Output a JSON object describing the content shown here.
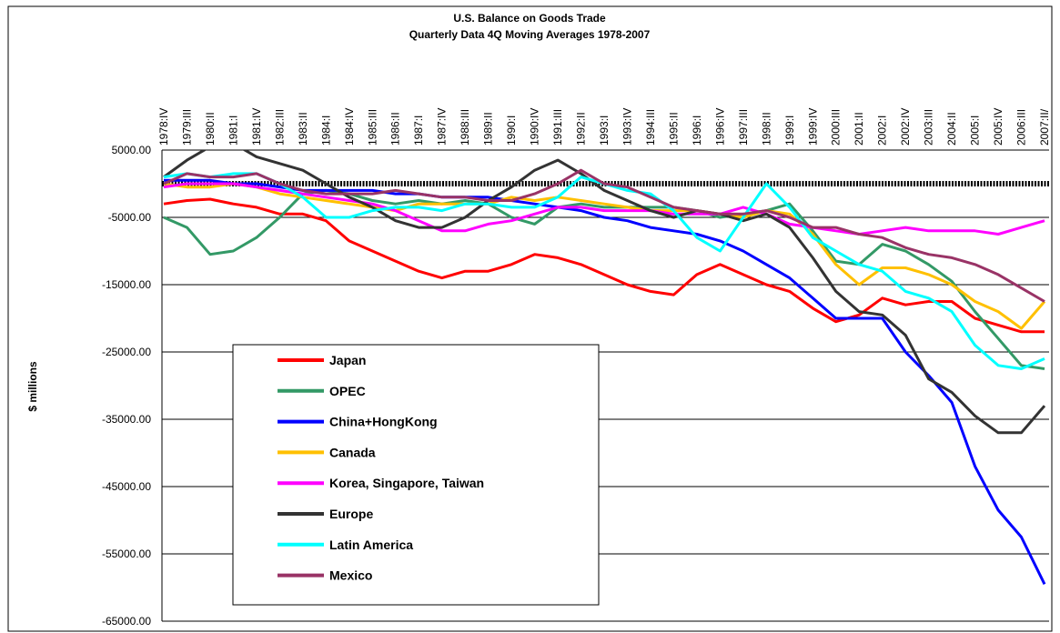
{
  "chart_data": {
    "type": "line",
    "title": "U.S. Balance on Goods Trade",
    "subtitle": "Quarterly Data 4Q Moving Averages 1978-2007",
    "y_label": "$ millions",
    "categories": [
      "1978:IV",
      "1979:III",
      "1980:II",
      "1981:I",
      "1981:IV",
      "1982:III",
      "1983:II",
      "1984:I",
      "1984:IV",
      "1985:III",
      "1986:II",
      "1987:I",
      "1987:IV",
      "1988:III",
      "1989:II",
      "1990:I",
      "1990:IV",
      "1991:III",
      "1992:II",
      "1993:I",
      "1993:IV",
      "1994:III",
      "1995:II",
      "1996:I",
      "1996:IV",
      "1997:III",
      "1998:II",
      "1999:I",
      "1999:IV",
      "2000:III",
      "2001:II",
      "2002:I",
      "2002:IV",
      "2003:III",
      "2004:II",
      "2005:I",
      "2005:IV",
      "2006:III",
      "2007:II/"
    ],
    "ylim": [
      -65000,
      5000
    ],
    "yticks": [
      {
        "value": 5000,
        "label": "5000.00"
      },
      {
        "value": -5000,
        "label": "-5000.00"
      },
      {
        "value": -15000,
        "label": "-15000.00"
      },
      {
        "value": -25000,
        "label": "-25000.00"
      },
      {
        "value": -35000,
        "label": "-35000.00"
      },
      {
        "value": -45000,
        "label": "-45000.00"
      },
      {
        "value": -55000,
        "label": "-55000.00"
      },
      {
        "value": -65000,
        "label": "-65000.00"
      }
    ],
    "grid": true,
    "series": [
      {
        "name": "Japan",
        "color": "#ff0000",
        "values": [
          -3000,
          -2500,
          -2300,
          -3000,
          -3500,
          -4500,
          -4500,
          -5500,
          -8500,
          -10000,
          -11500,
          -13000,
          -14000,
          -13000,
          -13000,
          -12000,
          -10500,
          -11000,
          -12000,
          -13500,
          -15000,
          -16000,
          -16500,
          -13500,
          -12000,
          -13500,
          -15000,
          -16000,
          -18500,
          -20500,
          -19500,
          -17000,
          -18000,
          -17500,
          -17500,
          -20000,
          -21000,
          -22000,
          -22000
        ]
      },
      {
        "name": "OPEC",
        "color": "#339966",
        "values": [
          -5000,
          -6500,
          -10500,
          -10000,
          -8000,
          -5000,
          -1500,
          -1000,
          -1500,
          -2500,
          -3000,
          -2500,
          -3000,
          -2500,
          -3000,
          -5000,
          -6000,
          -3500,
          -3000,
          -3500,
          -3500,
          -3500,
          -3500,
          -4000,
          -5000,
          -4500,
          -4000,
          -3000,
          -7000,
          -11500,
          -12000,
          -9000,
          -10000,
          -12000,
          -14500,
          -19000,
          -23000,
          -27000,
          -27500
        ]
      },
      {
        "name": "China+HongKong",
        "color": "#0000ff",
        "values": [
          500,
          500,
          500,
          0,
          0,
          -500,
          -1000,
          -1000,
          -1000,
          -1000,
          -1500,
          -1500,
          -2000,
          -2000,
          -2000,
          -2500,
          -3000,
          -3500,
          -4000,
          -5000,
          -5500,
          -6500,
          -7000,
          -7500,
          -8500,
          -10000,
          -12000,
          -14000,
          -17000,
          -20000,
          -20000,
          -20000,
          -25000,
          -28500,
          -32500,
          -42000,
          -48500,
          -52500,
          -59500
        ]
      },
      {
        "name": "Canada",
        "color": "#ffc000",
        "values": [
          0,
          -500,
          -500,
          0,
          -500,
          -1500,
          -2000,
          -2500,
          -3000,
          -3500,
          -4000,
          -3000,
          -3000,
          -3000,
          -3000,
          -2000,
          -2500,
          -2000,
          -2500,
          -3000,
          -3500,
          -4000,
          -4000,
          -4000,
          -4500,
          -5000,
          -4000,
          -4500,
          -7500,
          -12000,
          -15000,
          -12500,
          -12500,
          -13500,
          -15000,
          -17500,
          -19000,
          -21500,
          -17500
        ]
      },
      {
        "name": "Korea, Singapore, Taiwan",
        "color": "#ff00ff",
        "values": [
          -500,
          0,
          0,
          0,
          -500,
          -1000,
          -1500,
          -2000,
          -2500,
          -3000,
          -4000,
          -5500,
          -7000,
          -7000,
          -6000,
          -5500,
          -4500,
          -3500,
          -3500,
          -4000,
          -4000,
          -4000,
          -4500,
          -4500,
          -4500,
          -3500,
          -4500,
          -6000,
          -6500,
          -7000,
          -7500,
          -7000,
          -6500,
          -7000,
          -7000,
          -7000,
          -7500,
          -6500,
          -5500
        ]
      },
      {
        "name": "Europe",
        "color": "#333333",
        "values": [
          1000,
          3500,
          5500,
          6000,
          4000,
          3000,
          2000,
          0,
          -2000,
          -3500,
          -5500,
          -6500,
          -6500,
          -5000,
          -2500,
          -500,
          2000,
          3500,
          1500,
          -1000,
          -2500,
          -4000,
          -5000,
          -4000,
          -4500,
          -5500,
          -4500,
          -6500,
          -11000,
          -16000,
          -19000,
          -19500,
          -22500,
          -29000,
          -31000,
          -34500,
          -37000,
          -37000,
          -33000
        ]
      },
      {
        "name": "Latin America",
        "color": "#00ffff",
        "values": [
          1000,
          1500,
          1000,
          1500,
          1500,
          0,
          -2000,
          -5000,
          -5000,
          -4000,
          -3500,
          -3500,
          -4000,
          -3000,
          -3000,
          -3500,
          -3500,
          -2000,
          1000,
          0,
          -1000,
          -1500,
          -4000,
          -8000,
          -10000,
          -5000,
          0,
          -3500,
          -8000,
          -10000,
          -12000,
          -13000,
          -16000,
          -17000,
          -19000,
          -24000,
          -27000,
          -27500,
          -26000
        ]
      },
      {
        "name": "Mexico",
        "color": "#993366",
        "values": [
          0,
          1500,
          1000,
          1000,
          1500,
          0,
          -1000,
          -1500,
          -1500,
          -1500,
          -1000,
          -1500,
          -2000,
          -2000,
          -2500,
          -2500,
          -1500,
          0,
          2000,
          0,
          -500,
          -2000,
          -3500,
          -4000,
          -4500,
          -4500,
          -4000,
          -5000,
          -6500,
          -6500,
          -7500,
          -8000,
          -9500,
          -10500,
          -11000,
          -12000,
          -13500,
          -15500,
          -17500
        ]
      }
    ]
  }
}
